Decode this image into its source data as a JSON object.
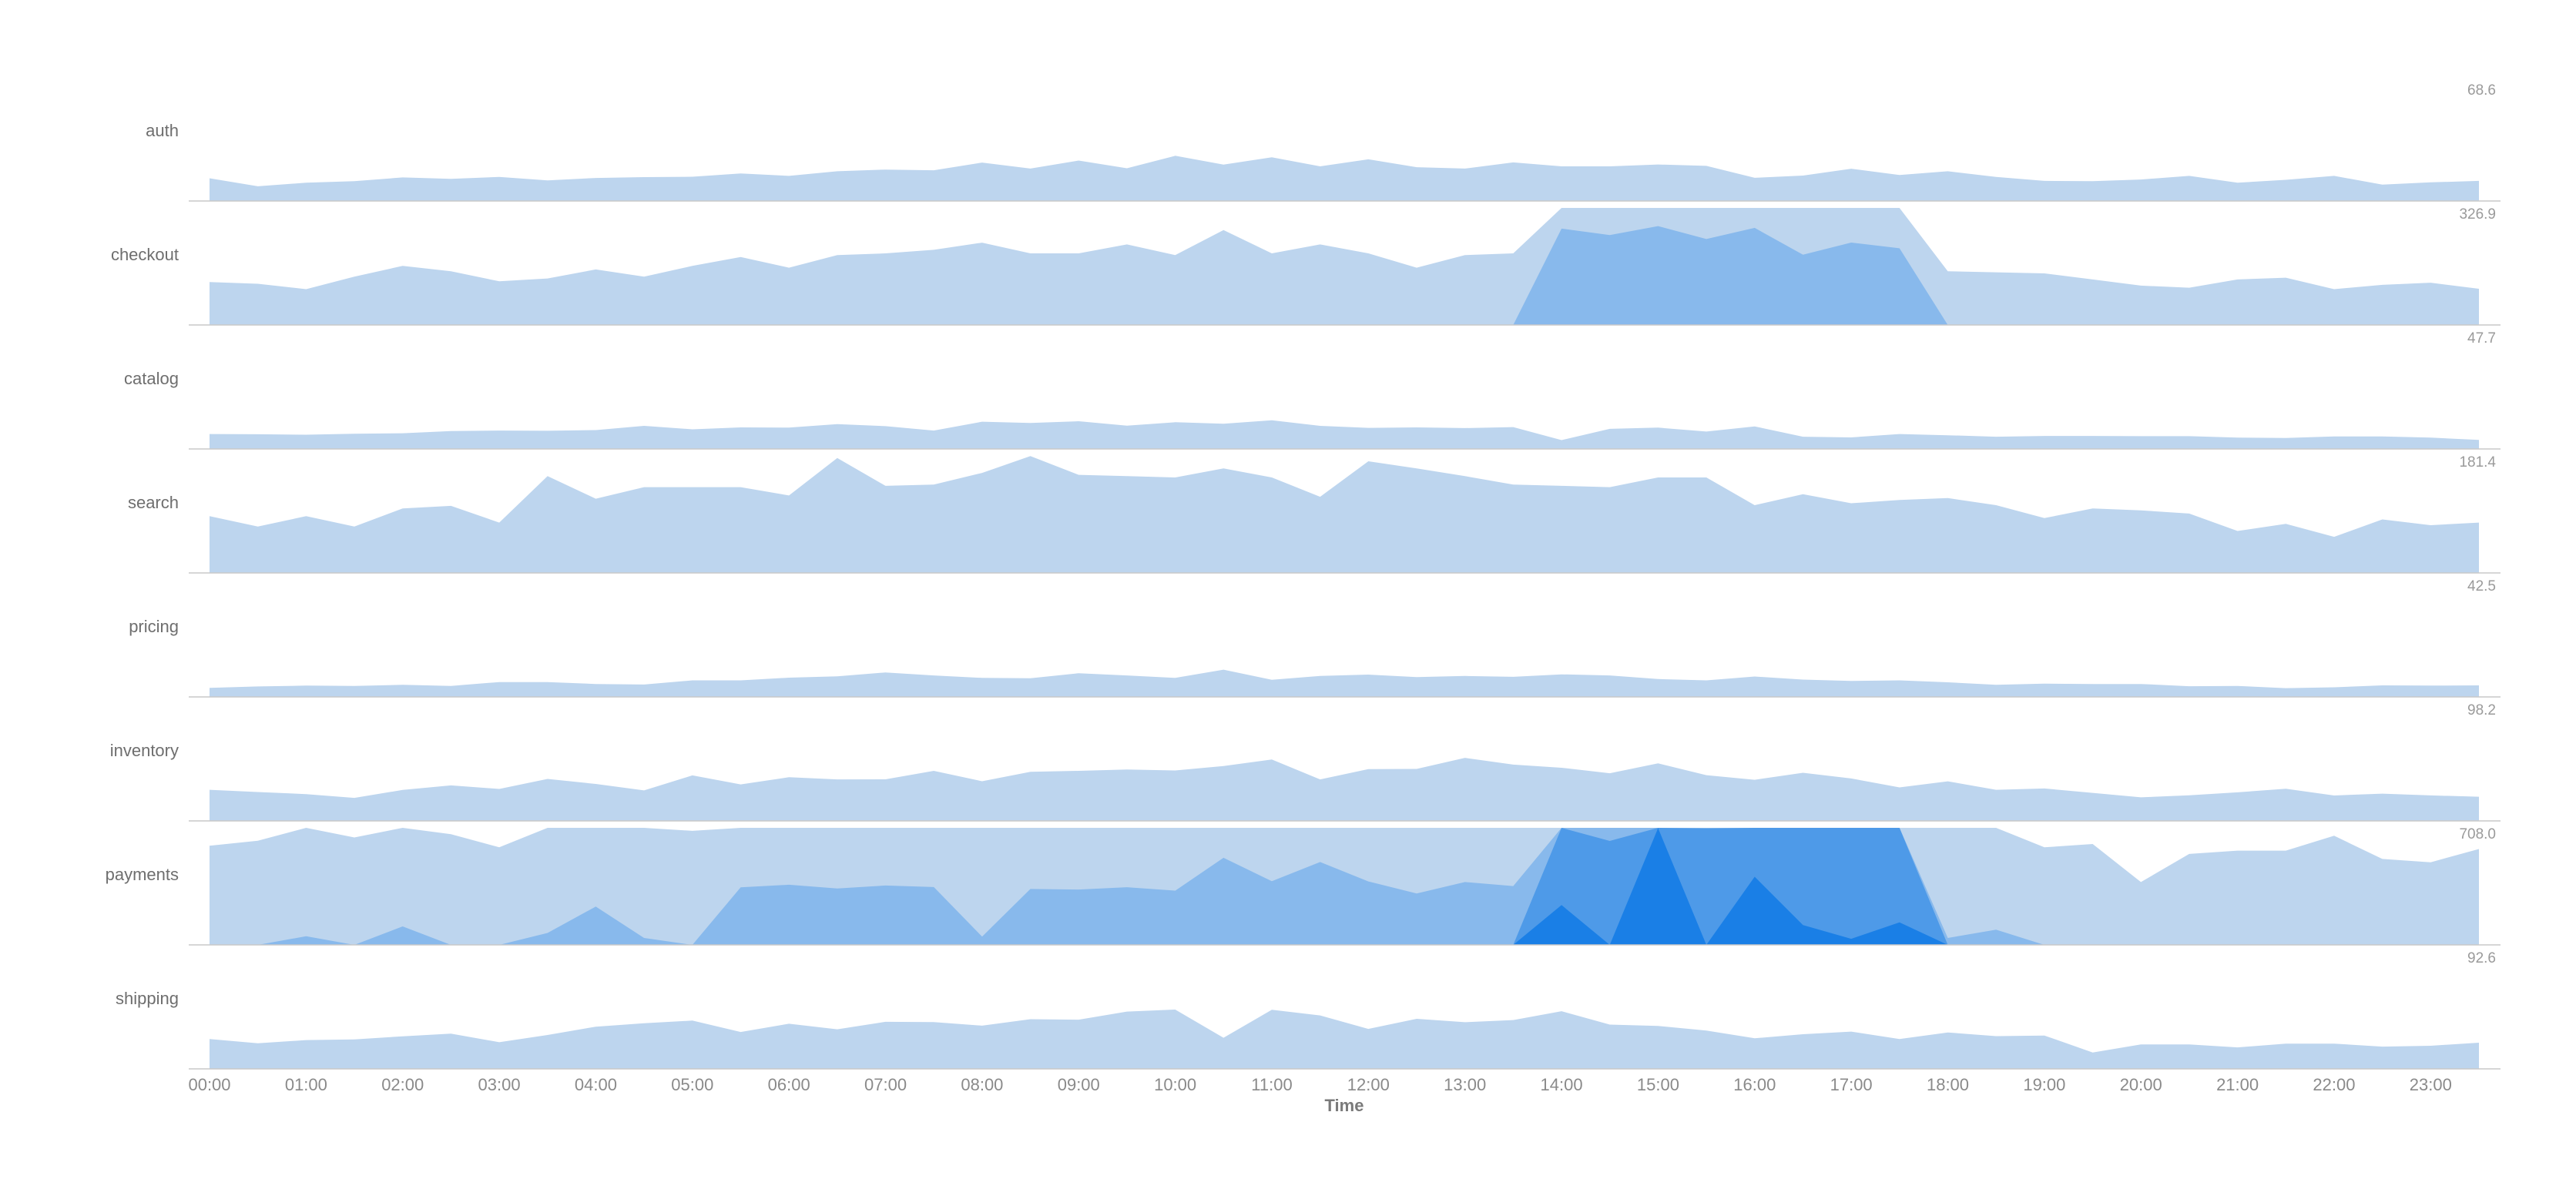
{
  "chart_data": {
    "type": "horizon",
    "xlabel": "Time",
    "x_ticks": [
      "00:00",
      "01:00",
      "02:00",
      "03:00",
      "04:00",
      "05:00",
      "06:00",
      "07:00",
      "08:00",
      "09:00",
      "10:00",
      "11:00",
      "12:00",
      "13:00",
      "14:00",
      "15:00",
      "16:00",
      "17:00",
      "18:00",
      "19:00",
      "20:00",
      "21:00",
      "22:00",
      "23:00"
    ],
    "x_hours": [
      0,
      0.5,
      1,
      1.5,
      2,
      2.5,
      3,
      3.5,
      4,
      4.5,
      5,
      5.5,
      6,
      6.5,
      7,
      7.5,
      8,
      8.5,
      9,
      9.5,
      10,
      10.5,
      11,
      11.5,
      12,
      12.5,
      13,
      13.5,
      14,
      14.5,
      15,
      15.5,
      16,
      16.5,
      17,
      17.5,
      18,
      18.5,
      19,
      19.5,
      20,
      20.5,
      21,
      21.5,
      22,
      22.5,
      23,
      23.5
    ],
    "band_colors": [
      "#bdd5ee",
      "#88b9ec",
      "#4e9ae8",
      "#1a7fe6"
    ],
    "series": [
      {
        "name": "auth",
        "max_label": "68.6",
        "band": 68.6,
        "values": [
          13.3,
          8.6,
          10.7,
          11.6,
          13.8,
          13.0,
          14.1,
          12.1,
          13.5,
          14.0,
          14.2,
          16.1,
          14.7,
          17.4,
          18.4,
          18.0,
          22.5,
          19.0,
          23.7,
          19.2,
          26.5,
          21.3,
          25.6,
          20.3,
          24.4,
          19.8,
          19.0,
          22.6,
          20.3,
          20.3,
          21.4,
          20.6,
          13.6,
          14.9,
          18.9,
          15.2,
          17.4,
          14.1,
          11.8,
          11.6,
          12.6,
          14.7,
          10.7,
          12.4,
          14.7,
          9.6,
          10.9,
          11.8
        ]
      },
      {
        "name": "checkout",
        "max_label": "326.9",
        "band": 326.9,
        "values": [
          120,
          115,
          100,
          135,
          165,
          150,
          122,
          130,
          155,
          135,
          165,
          190,
          160,
          195,
          200,
          210,
          230,
          200,
          200,
          225,
          195,
          265,
          200,
          225,
          200,
          160,
          195,
          200,
          596,
          578,
          603,
          567,
          598,
          523,
          557,
          541,
          150,
          147,
          144,
          127,
          110,
          104,
          127,
          132,
          100,
          112,
          118,
          101
        ]
      },
      {
        "name": "catalog",
        "max_label": "47.7",
        "band": 47.7,
        "values": [
          6.1,
          6.0,
          5.8,
          6.2,
          6.4,
          7.3,
          7.5,
          7.4,
          7.7,
          9.4,
          8.0,
          8.8,
          8.7,
          10.1,
          9.3,
          7.5,
          11.1,
          10.6,
          11.3,
          9.5,
          10.9,
          10.3,
          11.7,
          9.4,
          8.6,
          8.8,
          8.5,
          8.9,
          3.6,
          8.2,
          8.7,
          7.1,
          9.2,
          5.0,
          4.7,
          6.1,
          5.6,
          5.0,
          5.3,
          5.3,
          5.2,
          5.2,
          4.6,
          4.5,
          5.1,
          5.1,
          4.6,
          3.7
        ]
      },
      {
        "name": "search",
        "max_label": "181.4",
        "band": 181.4,
        "values": [
          88,
          72,
          88,
          72,
          100,
          104,
          78,
          150,
          115,
          133,
          133,
          133,
          120,
          178,
          135,
          137,
          155,
          181,
          152,
          150,
          148,
          162,
          148,
          118,
          173,
          162,
          150,
          137,
          135,
          133,
          148,
          148,
          105,
          122,
          108,
          113,
          116,
          105,
          85,
          100,
          97,
          92,
          65,
          76,
          56,
          83,
          74,
          78
        ]
      },
      {
        "name": "pricing",
        "max_label": "42.5",
        "band": 42.5,
        "values": [
          3.3,
          3.8,
          4.1,
          4.0,
          4.4,
          4.0,
          5.4,
          5.4,
          4.7,
          4.5,
          6.0,
          6.0,
          7.0,
          7.5,
          8.9,
          7.8,
          6.9,
          6.8,
          8.6,
          7.8,
          6.9,
          9.9,
          6.2,
          7.6,
          8.1,
          7.2,
          7.6,
          7.3,
          8.2,
          7.8,
          6.5,
          6.0,
          7.4,
          6.3,
          5.8,
          6.0,
          5.3,
          4.4,
          4.8,
          4.7,
          4.7,
          3.9,
          4.0,
          3.2,
          3.5,
          4.2,
          4.1,
          4.2
        ]
      },
      {
        "name": "inventory",
        "max_label": "98.2",
        "band": 98.2,
        "values": [
          26.1,
          24.2,
          22.5,
          19.3,
          26.0,
          29.8,
          26.8,
          35.2,
          31.0,
          25.6,
          38.2,
          30.6,
          36.6,
          34.8,
          34.9,
          42.0,
          33.3,
          41.2,
          42.0,
          43.1,
          42.3,
          46.0,
          51.5,
          34.8,
          43.4,
          43.6,
          52.9,
          47.2,
          44.6,
          40.0,
          48.3,
          38.4,
          34.5,
          40.4,
          35.6,
          28.1,
          33.2,
          26.1,
          27.2,
          23.5,
          19.8,
          21.5,
          24.0,
          27.0,
          21.3,
          22.9,
          21.4,
          20.3
        ]
      },
      {
        "name": "payments",
        "max_label": "708.0",
        "band": 708.0,
        "values": [
          600,
          630,
          760,
          650,
          820,
          670,
          590,
          780,
          940,
          750,
          690,
          1056,
          1072,
          1049,
          1067,
          1058,
          758,
          1046,
          1043,
          1057,
          1036,
          1235,
          1093,
          1209,
          1092,
          1019,
          1088,
          1064,
          2365,
          2045,
          2830,
          2120,
          2536,
          2244,
          2161,
          2260,
          750,
          800,
          590,
          610,
          380,
          550,
          570,
          570,
          660,
          520,
          500,
          580
        ]
      },
      {
        "name": "shipping",
        "max_label": "92.6",
        "band": 92.6,
        "values": [
          23.6,
          20.2,
          22.8,
          23.3,
          25.8,
          27.9,
          21.1,
          26.8,
          33.4,
          36.1,
          38.2,
          29.2,
          35.7,
          31.3,
          37.2,
          37.0,
          34.2,
          39.3,
          38.9,
          45.3,
          46.9,
          24.6,
          46.8,
          42.3,
          31.6,
          39.6,
          36.9,
          38.6,
          45.6,
          35.0,
          34.0,
          30.3,
          24.2,
          27.4,
          29.5,
          23.6,
          28.8,
          25.9,
          26.4,
          13.0,
          19.3,
          19.3,
          17.0,
          20.0,
          20.0,
          17.6,
          18.3,
          20.7
        ]
      }
    ]
  }
}
